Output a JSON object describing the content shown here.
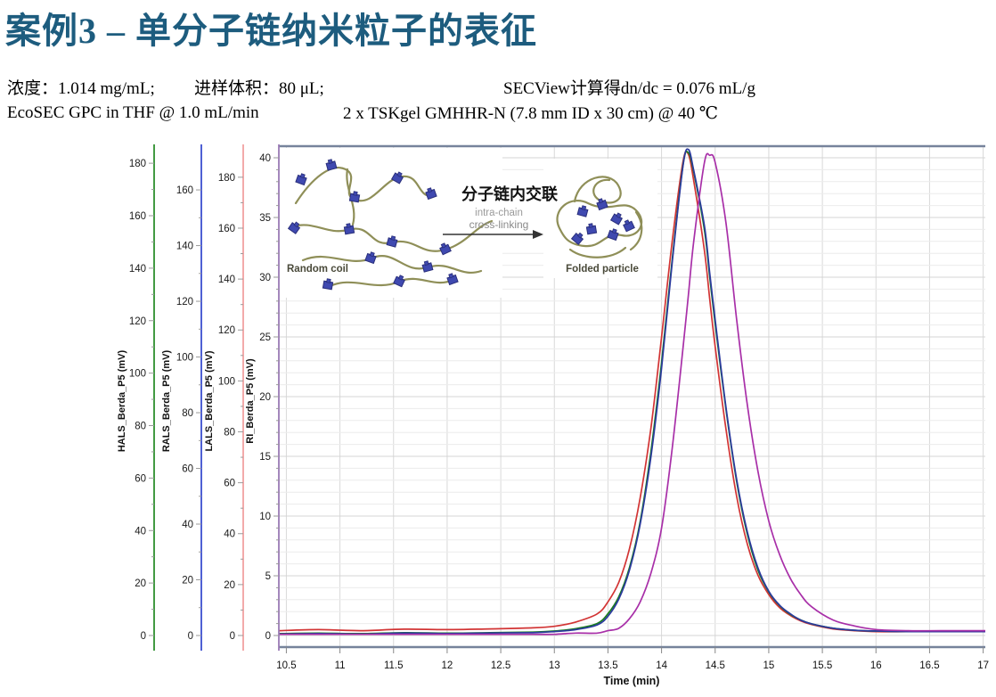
{
  "slide": {
    "title": "案例3 – 单分子链纳米粒子的表征",
    "title_color": "#1d5c7e",
    "info1_concentration": "浓度：1.014 mg/mL;",
    "info1_injection": "进样体积：80 μL;",
    "info1_dndc": "SECView计算得dn/dc = 0.076 mL/g",
    "info2_system": "EcoSEC GPC in THF @ 1.0 mL/min",
    "info2_column": "2 x TSKgel GMHHR-N (7.8 mm ID x 30 cm) @ 40 ℃"
  },
  "inset": {
    "random_coil_label": "Random coil",
    "folded_particle_label": "Folded particle",
    "arrow_label_zh": "分子链内交联",
    "arrow_label_en1": "intra-chain",
    "arrow_label_en2": "cross-linking",
    "chain_color": "#8f8f58",
    "block_color": "#3f49b0"
  },
  "chart_data": {
    "type": "line",
    "xlabel": "Time (min)",
    "x_range": [
      10.43,
      17.02
    ],
    "x_ticks": [
      10.5,
      11,
      11.5,
      12,
      12.5,
      13,
      13.5,
      14,
      14.5,
      15,
      15.5,
      16,
      16.5,
      17
    ],
    "grid": true,
    "legend_position": "none",
    "y_axes": [
      {
        "id": "HALS",
        "label": "HALS_Berda_P5 (mV)",
        "axis_color": "#2e8f2e",
        "max_tick": 180,
        "tick_step": 20,
        "minor_step": 10,
        "axis_max": 186.5
      },
      {
        "id": "RALS",
        "label": "RALS_Berda_P5 (mV)",
        "axis_color": "#3b4fd0",
        "max_tick": 160,
        "tick_step": 20,
        "minor_step": 10,
        "axis_max": 175.7
      },
      {
        "id": "LALS",
        "label": "LALS_Berda_P5 (mV)",
        "axis_color": "#f2a0a0",
        "max_tick": 180,
        "tick_step": 20,
        "minor_step": 10,
        "axis_max": 192.2
      },
      {
        "id": "RI",
        "label": "RI_Berda_P5 (mV)",
        "axis_color": "#9a7ab5",
        "max_tick": 40,
        "tick_step": 5,
        "minor_step": 1,
        "axis_max": 40.97
      }
    ],
    "x": [
      10.43,
      10.8,
      11.2,
      11.6,
      12,
      12.4,
      12.8,
      13,
      13.2,
      13.4,
      13.5,
      13.6,
      13.7,
      13.8,
      13.9,
      14,
      14.1,
      14.2,
      14.25,
      14.3,
      14.4,
      14.45,
      14.5,
      14.6,
      14.7,
      14.8,
      14.9,
      15,
      15.1,
      15.2,
      15.3,
      15.4,
      15.6,
      15.8,
      16,
      16.3,
      16.6,
      17.02
    ],
    "series": [
      {
        "name": "LALS_Berda_P5",
        "axis": "LALS",
        "color": "#d23434",
        "values": [
          1.9,
          2.3,
          1.9,
          2.5,
          2.3,
          2.6,
          3,
          3.6,
          5.3,
          8.5,
          13.2,
          20.8,
          34,
          53.9,
          81.3,
          117.2,
          155,
          186.2,
          189,
          178.6,
          151.2,
          132,
          113.4,
          81.3,
          54.8,
          35.9,
          23.6,
          16.1,
          11,
          7.9,
          5.7,
          4.3,
          2.6,
          1.9,
          1.5,
          1.5,
          1.5,
          1.5
        ]
      },
      {
        "name": "HALS_Berda_P5",
        "axis": "HALS",
        "color": "#1a7d1f",
        "values": [
          0.7,
          0.9,
          0.7,
          1.1,
          0.9,
          1.1,
          1.3,
          1.7,
          2.6,
          4.6,
          8.3,
          14.7,
          25.8,
          43.2,
          69.9,
          104,
          143.5,
          179.4,
          184,
          176.6,
          154.6,
          136.5,
          118.7,
          86.5,
          58.9,
          38.6,
          24.8,
          16.6,
          11.4,
          8.1,
          5.9,
          4.4,
          2.8,
          2,
          1.7,
          1.5,
          1.5,
          1.5
        ]
      },
      {
        "name": "RALS_Berda_P5",
        "axis": "RALS",
        "color": "#2b3a9e",
        "values": [
          0.5,
          0.7,
          0.5,
          0.9,
          0.7,
          0.9,
          1,
          1.4,
          2.1,
          3.8,
          6.9,
          13,
          23.4,
          39.8,
          64,
          96,
          134.1,
          168.7,
          174.5,
          167,
          147.1,
          130,
          113.3,
          82.2,
          56.2,
          37.2,
          24.2,
          15.9,
          10.9,
          7.8,
          5.5,
          4.2,
          2.6,
          1.9,
          1.6,
          1.4,
          1.4,
          1.4
        ]
      },
      {
        "name": "RI_Berda_P5",
        "axis": "RI",
        "color": "#a82fa8",
        "values": [
          0.1,
          0.1,
          0.1,
          0.1,
          0.1,
          0.1,
          0.1,
          0.1,
          0.2,
          0.2,
          0.4,
          0.6,
          1.4,
          2.8,
          5.2,
          9,
          15.7,
          24.1,
          28.5,
          33,
          39.6,
          40.2,
          39.6,
          34.6,
          26.5,
          19.3,
          13.7,
          9.6,
          6.8,
          4.8,
          3.4,
          2.4,
          1.3,
          0.8,
          0.5,
          0.4,
          0.4,
          0.4
        ]
      }
    ]
  }
}
